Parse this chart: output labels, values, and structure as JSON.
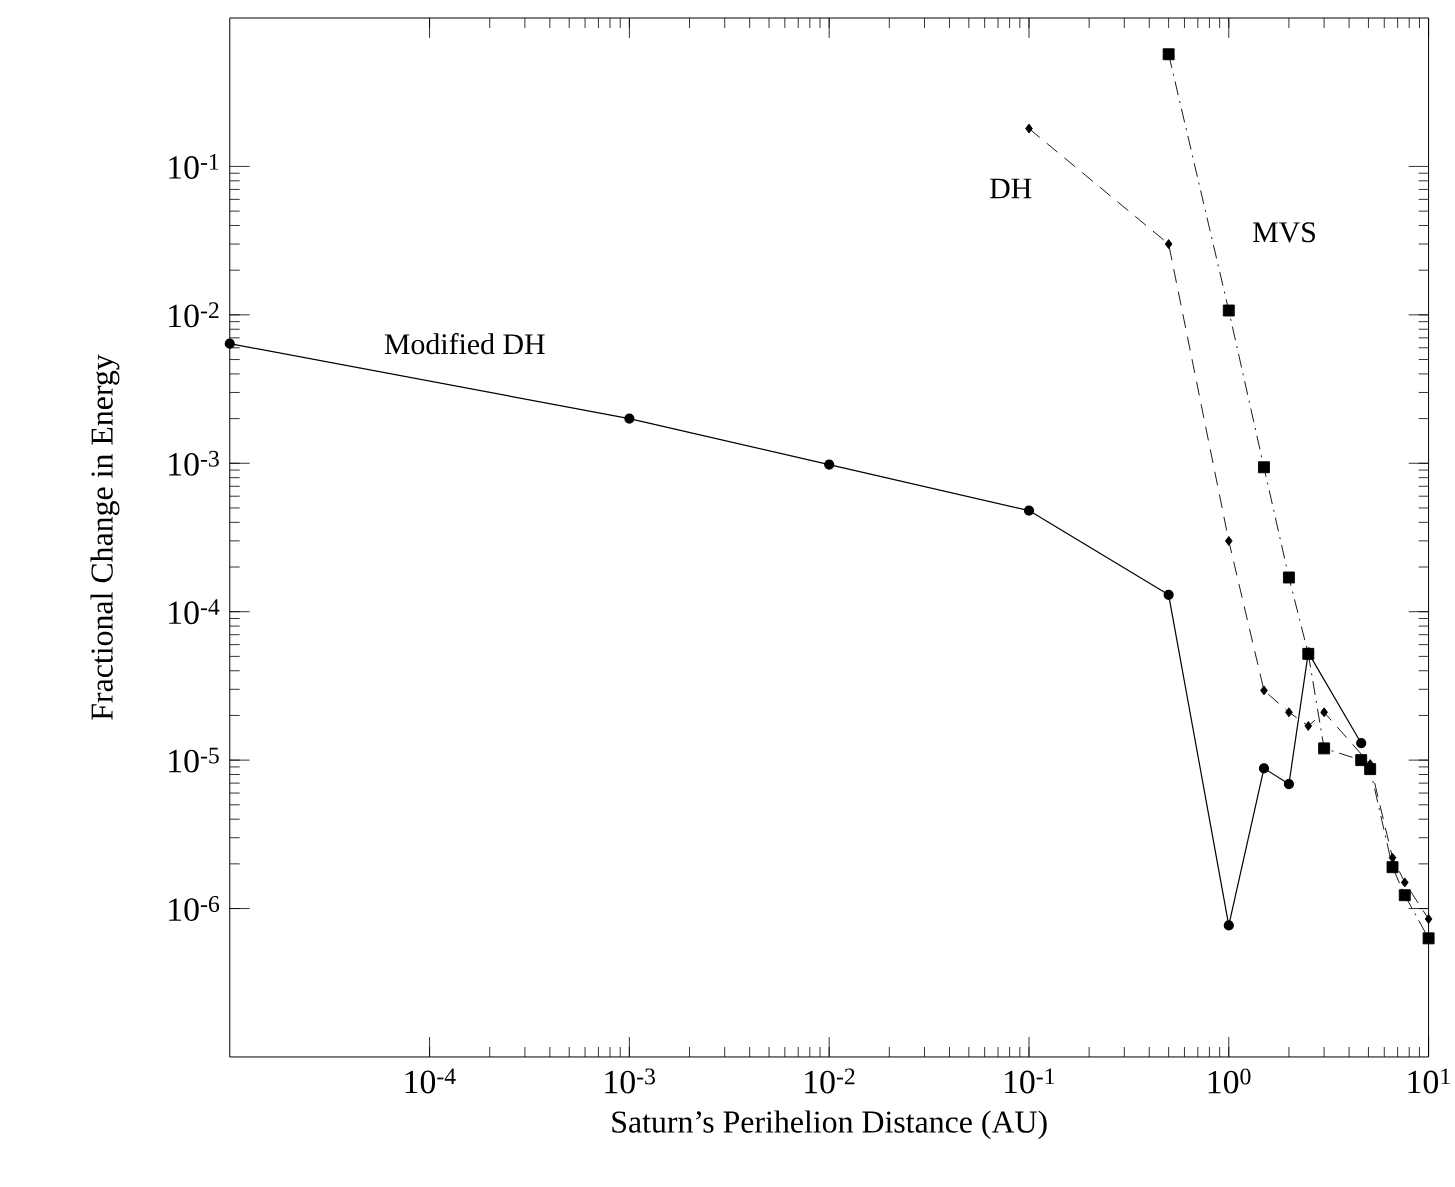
{
  "chart_data": {
    "type": "line",
    "xlabel": "Saturn’s Perihelion Distance (AU)",
    "ylabel": "Fractional Change in Energy",
    "log": "xy",
    "xlim": [
      1e-05,
      10
    ],
    "ylim": [
      1e-07,
      1
    ],
    "xticks": [
      {
        "value": 0.0001,
        "label": "10$^{-4}$"
      },
      {
        "value": 0.001,
        "label": "10$^{-3}$"
      },
      {
        "value": 0.01,
        "label": "10$^{-2}$"
      },
      {
        "value": 0.1,
        "label": "10$^{-1}$"
      },
      {
        "value": 1,
        "label": "10$^{0}$"
      },
      {
        "value": 10,
        "label": "10$^{1}$"
      }
    ],
    "yticks": [
      {
        "value": 1e-06,
        "label": "10$^{-6}$"
      },
      {
        "value": 1e-05,
        "label": "10$^{-5}$"
      },
      {
        "value": 0.0001,
        "label": "10$^{-4}$"
      },
      {
        "value": 0.001,
        "label": "10$^{-3}$"
      },
      {
        "value": 0.01,
        "label": "10$^{-2}$"
      },
      {
        "value": 0.1,
        "label": "10$^{-1}$"
      }
    ],
    "series": [
      {
        "name": "Modified DH",
        "color": "#000000",
        "marker": "circle",
        "line_style": "solid",
        "x": [
          1e-05,
          0.001,
          0.01,
          0.1,
          0.5,
          1,
          1.5,
          2,
          2.5,
          4.6
        ],
        "values": [
          0.0064,
          0.002,
          0.00098,
          0.00048,
          0.00013,
          7.7e-07,
          8.8e-06,
          6.9e-06,
          5.3e-05,
          1.3e-05
        ]
      },
      {
        "name": "DH",
        "color": "#000000",
        "marker": "diamond",
        "line_style": "dashed",
        "x": [
          0.1,
          0.5,
          1,
          1.5,
          2,
          2.5,
          3,
          5.1,
          6.6,
          7.6,
          10
        ],
        "values": [
          0.18,
          0.03,
          0.0003,
          2.95e-05,
          2.1e-05,
          1.7e-05,
          2.1e-05,
          9.4e-06,
          2.2e-06,
          1.5e-06,
          8.5e-07
        ]
      },
      {
        "name": "MVS",
        "color": "#000000",
        "marker": "square",
        "line_style": "dashdot",
        "x": [
          0.5,
          1,
          1.5,
          2,
          2.5,
          3,
          4.6,
          5.1,
          6.6,
          7.6,
          10
        ],
        "values": [
          0.57,
          0.0107,
          0.00094,
          0.00017,
          5.2e-05,
          1.2e-05,
          1e-05,
          8.7e-06,
          1.9e-06,
          1.23e-06,
          6.3e-07
        ]
      }
    ]
  }
}
